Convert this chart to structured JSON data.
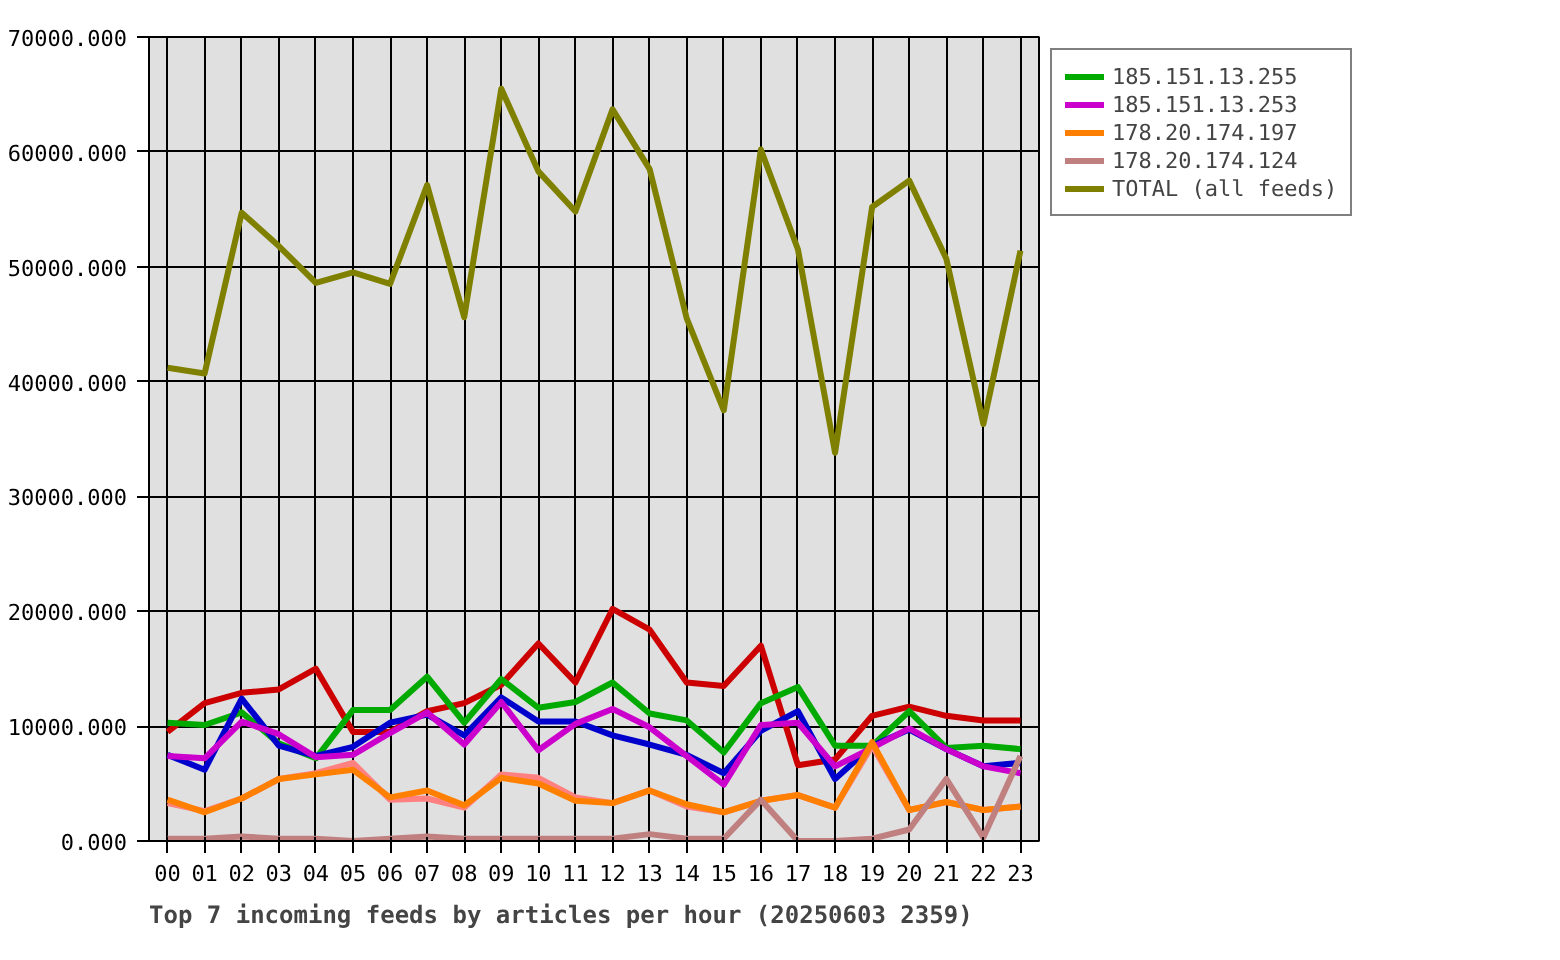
{
  "chart_data": {
    "type": "line",
    "title": "Top 7 incoming feeds by articles per hour (20250603 2359)",
    "categories": [
      "00",
      "01",
      "02",
      "03",
      "04",
      "05",
      "06",
      "07",
      "08",
      "09",
      "10",
      "11",
      "12",
      "13",
      "14",
      "15",
      "16",
      "17",
      "18",
      "19",
      "20",
      "21",
      "22",
      "23"
    ],
    "series": [
      {
        "color": "#cc0000",
        "values": [
          9500,
          12000,
          12900,
          13200,
          15000,
          9500,
          9500,
          11300,
          12000,
          13600,
          17200,
          13800,
          20200,
          18400,
          13800,
          13500,
          17000,
          6600,
          7100,
          10900,
          11700,
          10900,
          10500,
          10500
        ]
      },
      {
        "name": "185.151.13.255",
        "color": "#00aa00",
        "values": [
          10300,
          10100,
          11200,
          8500,
          7200,
          11400,
          11400,
          14300,
          10300,
          14100,
          11600,
          12100,
          13800,
          11100,
          10500,
          7700,
          12000,
          13400,
          8300,
          8300,
          11300,
          8100,
          8300,
          8000
        ]
      },
      {
        "color": "#0000cc",
        "values": [
          7500,
          6200,
          12400,
          8300,
          7400,
          8200,
          10300,
          11000,
          9200,
          12500,
          10400,
          10400,
          9200,
          8400,
          7500,
          5900,
          9600,
          11300,
          5400,
          8300,
          9700,
          8000,
          6500,
          6800
        ]
      },
      {
        "name": "185.151.13.253",
        "color": "#cc00cc",
        "values": [
          7400,
          7200,
          10400,
          9300,
          7300,
          7500,
          9400,
          11200,
          8400,
          12100,
          7900,
          10200,
          11500,
          9900,
          7400,
          4900,
          10100,
          10300,
          6500,
          8100,
          9800,
          8000,
          6500,
          5900
        ]
      },
      {
        "color": "#ff8080",
        "values": [
          3300,
          2600,
          3700,
          5400,
          5900,
          6800,
          3600,
          3700,
          2900,
          5800,
          5500,
          3800,
          3300,
          4400,
          3000,
          2500,
          3500,
          4000,
          2900,
          8300,
          2700,
          3400,
          2700,
          3000
        ]
      },
      {
        "name": "178.20.174.197",
        "color": "#ff8000",
        "values": [
          3600,
          2500,
          3700,
          5400,
          5800,
          6200,
          3800,
          4400,
          3100,
          5500,
          5000,
          3500,
          3300,
          4400,
          3200,
          2500,
          3500,
          4000,
          2900,
          8600,
          2700,
          3400,
          2700,
          3000
        ]
      },
      {
        "name": "178.20.174.124",
        "color": "#c08080",
        "values": [
          200,
          200,
          400,
          200,
          200,
          0,
          200,
          400,
          200,
          200,
          200,
          200,
          200,
          600,
          200,
          200,
          3600,
          0,
          0,
          200,
          1000,
          5400,
          300,
          7400
        ]
      },
      {
        "name": "TOTAL (all feeds)",
        "color": "#808000",
        "values": [
          41200,
          40700,
          54700,
          51800,
          48600,
          49500,
          48500,
          57100,
          45600,
          65500,
          58300,
          54800,
          63700,
          58500,
          45500,
          37500,
          60200,
          51500,
          33800,
          55200,
          57500,
          50700,
          36300,
          51400
        ]
      }
    ],
    "ylim": [
      0,
      70000
    ],
    "yticks": [
      {
        "value": 0,
        "label": "0.000"
      },
      {
        "value": 10000,
        "label": "10000.000"
      },
      {
        "value": 20000,
        "label": "20000.000"
      },
      {
        "value": 30000,
        "label": "30000.000"
      },
      {
        "value": 40000,
        "label": "40000.000"
      },
      {
        "value": 50000,
        "label": "50000.000"
      },
      {
        "value": 60000,
        "label": "60000.000"
      },
      {
        "value": 70000,
        "label": "70000.000"
      }
    ],
    "grid": true,
    "legend": "right"
  }
}
